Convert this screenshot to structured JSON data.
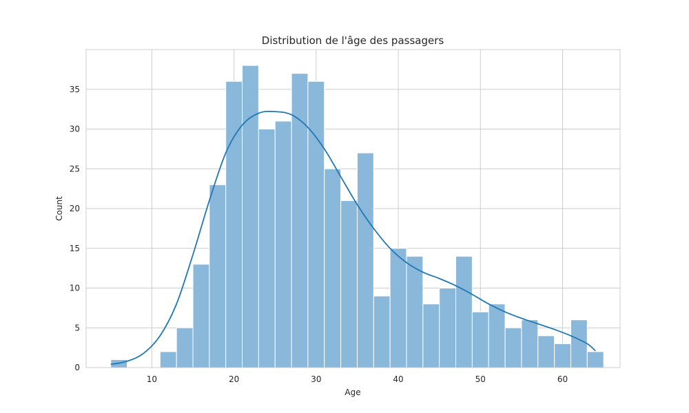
{
  "chart_data": {
    "type": "bar",
    "title": "Distribution de l'âge des passagers",
    "xlabel": "Age",
    "ylabel": "Count",
    "xlim": [
      2.0,
      67.0
    ],
    "ylim": [
      0,
      40
    ],
    "x_ticks": [
      10,
      20,
      30,
      40,
      50,
      60
    ],
    "y_ticks": [
      0,
      5,
      10,
      15,
      20,
      25,
      30,
      35
    ],
    "grid": true,
    "bin_edges": [
      5,
      7,
      9,
      11,
      13,
      15,
      17,
      19,
      21,
      23,
      25,
      27,
      29,
      31,
      33,
      35,
      37,
      39,
      41,
      43,
      45,
      47,
      49,
      51,
      53,
      55,
      57,
      59,
      61,
      63,
      65
    ],
    "values": [
      1,
      0,
      0,
      2,
      5,
      13,
      23,
      36,
      38,
      30,
      31,
      37,
      36,
      25,
      21,
      27,
      9,
      15,
      14,
      8,
      10,
      14,
      7,
      8,
      5,
      6,
      4,
      3,
      6,
      2
    ],
    "bar_color": "#8ab8da",
    "kde": {
      "color": "#1f77b4",
      "x": [
        5,
        7,
        9,
        11,
        13,
        15,
        17,
        19,
        21,
        23,
        25,
        27,
        29,
        31,
        33,
        35,
        37,
        39,
        41,
        43,
        45,
        47,
        49,
        51,
        53,
        55,
        57,
        59,
        61,
        63,
        64
      ],
      "y": [
        0.4,
        0.8,
        1.8,
        4.0,
        8.0,
        14.2,
        21.0,
        27.0,
        30.5,
        32.0,
        32.2,
        31.8,
        30.2,
        27.5,
        24.0,
        20.5,
        17.5,
        15.0,
        13.2,
        12.0,
        11.2,
        10.3,
        9.2,
        8.0,
        7.0,
        6.2,
        5.5,
        4.8,
        4.0,
        3.0,
        2.1
      ]
    }
  }
}
